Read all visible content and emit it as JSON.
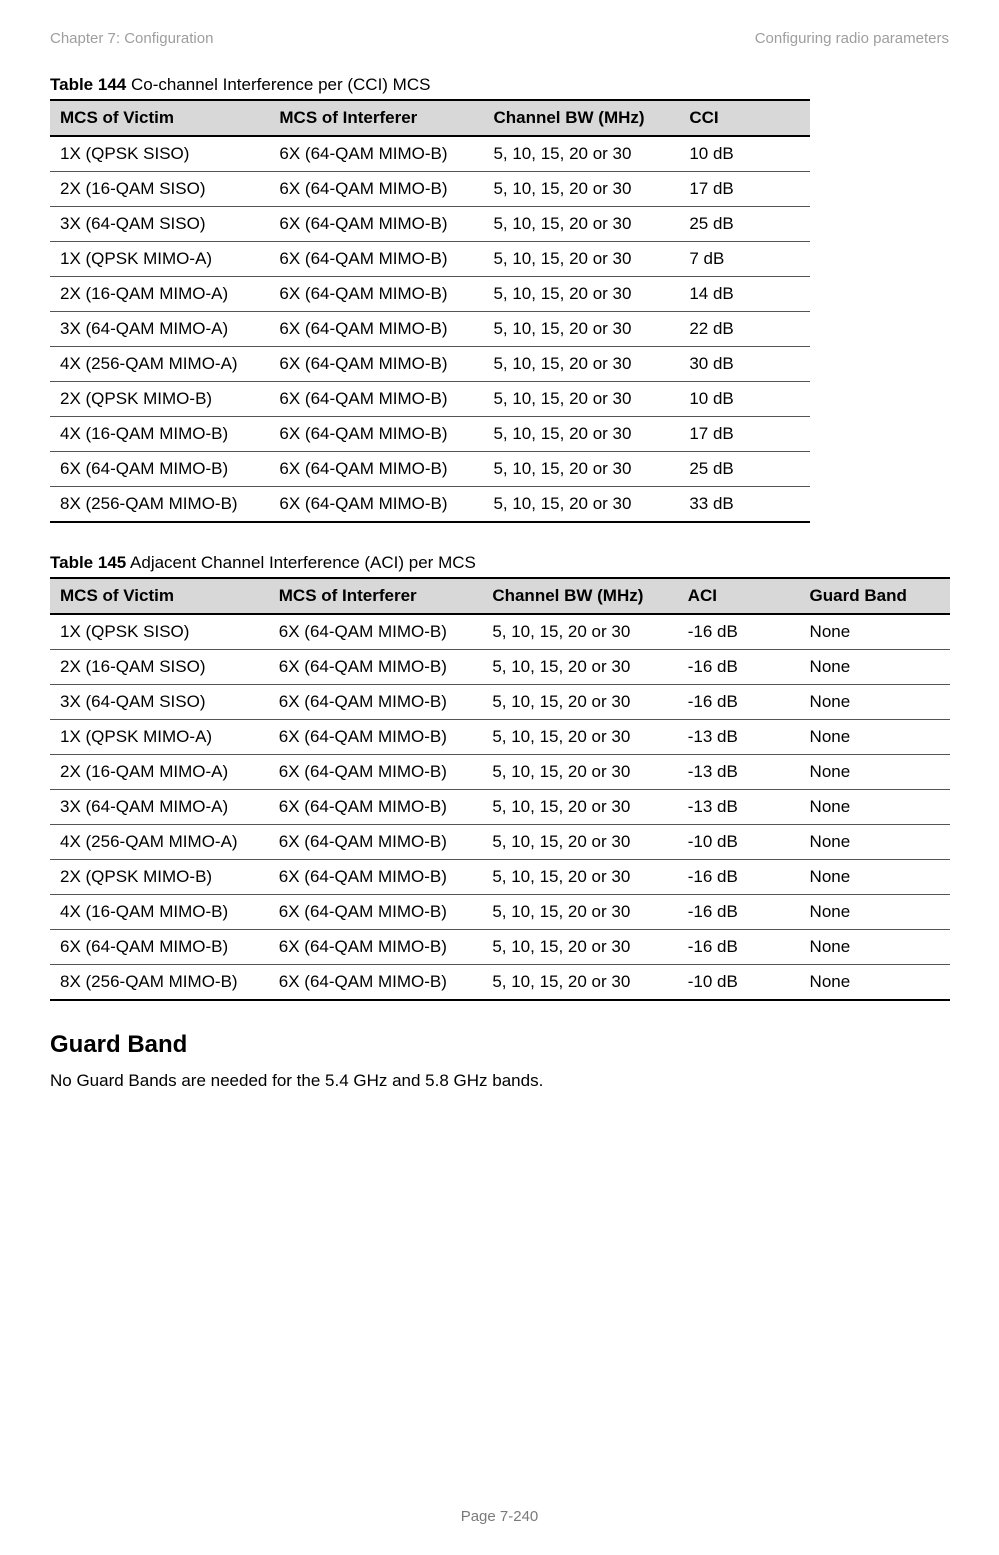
{
  "header": {
    "left": "Chapter 7:  Configuration",
    "right": "Configuring radio parameters"
  },
  "table1": {
    "caption_bold": "Table 144",
    "caption_rest": " Co-channel Interference per (CCI) MCS",
    "columns": [
      "MCS of Victim",
      "MCS of Interferer",
      "Channel BW (MHz)",
      "CCI"
    ],
    "col_widths": [
      "220px",
      "210px",
      "190px",
      "120px"
    ],
    "rows": [
      [
        "1X (QPSK SISO)",
        "6X (64-QAM MIMO-B)",
        "5, 10, 15, 20 or 30",
        "10 dB"
      ],
      [
        "2X (16-QAM SISO)",
        "6X (64-QAM MIMO-B)",
        "5, 10, 15, 20 or 30",
        "17 dB"
      ],
      [
        "3X (64-QAM SISO)",
        "6X (64-QAM MIMO-B)",
        "5, 10, 15, 20 or 30",
        "25 dB"
      ],
      [
        "1X (QPSK MIMO-A)",
        "6X (64-QAM MIMO-B)",
        "5, 10, 15, 20 or 30",
        "7 dB"
      ],
      [
        "2X (16-QAM MIMO-A)",
        "6X (64-QAM MIMO-B)",
        "5, 10, 15, 20 or 30",
        "14 dB"
      ],
      [
        "3X (64-QAM MIMO-A)",
        "6X (64-QAM MIMO-B)",
        "5, 10, 15, 20 or 30",
        "22 dB"
      ],
      [
        "4X (256-QAM MIMO-A)",
        "6X (64-QAM MIMO-B)",
        "5, 10, 15, 20 or 30",
        "30 dB"
      ],
      [
        "2X (QPSK MIMO-B)",
        "6X (64-QAM MIMO-B)",
        "5, 10, 15, 20 or 30",
        "10 dB"
      ],
      [
        "4X (16-QAM MIMO-B)",
        "6X (64-QAM MIMO-B)",
        "5, 10, 15, 20 or 30",
        "17 dB"
      ],
      [
        "6X (64-QAM MIMO-B)",
        "6X (64-QAM MIMO-B)",
        "5, 10, 15, 20 or 30",
        "25 dB"
      ],
      [
        "8X (256-QAM MIMO-B)",
        "6X (64-QAM MIMO-B)",
        "5, 10, 15, 20 or 30",
        "33 dB"
      ]
    ]
  },
  "table2": {
    "caption_bold": "Table 145",
    "caption_rest": " Adjacent Channel Interference (ACI) per MCS",
    "columns": [
      "MCS of Victim",
      "MCS of Interferer",
      "Channel BW (MHz)",
      "ACI",
      "Guard Band"
    ],
    "col_widths": [
      "220px",
      "210px",
      "190px",
      "110px",
      "140px"
    ],
    "rows": [
      [
        "1X (QPSK SISO)",
        "6X (64-QAM MIMO-B)",
        "5, 10, 15, 20 or 30",
        "-16 dB",
        "None"
      ],
      [
        "2X (16-QAM SISO)",
        "6X (64-QAM MIMO-B)",
        "5, 10, 15, 20 or 30",
        "-16 dB",
        "None"
      ],
      [
        "3X (64-QAM SISO)",
        "6X (64-QAM MIMO-B)",
        "5, 10, 15, 20 or 30",
        "-16 dB",
        "None"
      ],
      [
        "1X (QPSK MIMO-A)",
        "6X (64-QAM MIMO-B)",
        "5, 10, 15, 20 or 30",
        "-13 dB",
        "None"
      ],
      [
        "2X (16-QAM MIMO-A)",
        "6X (64-QAM MIMO-B)",
        "5, 10, 15, 20 or 30",
        "-13 dB",
        "None"
      ],
      [
        "3X (64-QAM MIMO-A)",
        "6X (64-QAM MIMO-B)",
        "5, 10, 15, 20 or 30",
        "-13 dB",
        "None"
      ],
      [
        "4X (256-QAM MIMO-A)",
        "6X (64-QAM MIMO-B)",
        "5, 10, 15, 20 or 30",
        "-10 dB",
        "None"
      ],
      [
        "2X (QPSK MIMO-B)",
        "6X (64-QAM MIMO-B)",
        "5, 10, 15, 20 or 30",
        "-16 dB",
        "None"
      ],
      [
        "4X (16-QAM MIMO-B)",
        "6X (64-QAM MIMO-B)",
        "5, 10, 15, 20 or 30",
        "-16 dB",
        "None"
      ],
      [
        "6X (64-QAM MIMO-B)",
        "6X (64-QAM MIMO-B)",
        "5, 10, 15, 20 or 30",
        "-16 dB",
        "None"
      ],
      [
        "8X (256-QAM MIMO-B)",
        "6X (64-QAM MIMO-B)",
        "5, 10, 15, 20 or 30",
        "-10 dB",
        "None"
      ]
    ]
  },
  "section": {
    "heading": "Guard Band",
    "text": "No Guard Bands are needed for the 5.4 GHz and 5.8 GHz bands."
  },
  "footer": "Page 7-240"
}
